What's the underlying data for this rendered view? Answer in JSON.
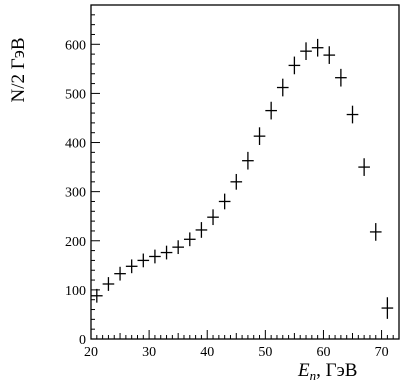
{
  "chart_data": {
    "type": "scatter",
    "title": "",
    "xlabel": "E_n, ГэВ",
    "xlabel_var": "E",
    "xlabel_sub": "n",
    "xlabel_unit": ", ГэВ",
    "ylabel": "N/2 ГэВ",
    "xlim": [
      20,
      73
    ],
    "ylim": [
      0,
      680
    ],
    "xticks": [
      20,
      30,
      40,
      50,
      60,
      70
    ],
    "yticks": [
      0,
      100,
      200,
      300,
      400,
      500,
      600
    ],
    "grid": false,
    "series": [
      {
        "x": [
          21,
          23,
          25,
          27,
          29,
          31,
          33,
          35,
          37,
          39,
          41,
          43,
          45,
          47,
          49,
          51,
          53,
          55,
          57,
          59,
          61,
          63,
          65,
          67,
          69,
          71
        ],
        "y": [
          88,
          112,
          133,
          148,
          160,
          168,
          176,
          187,
          203,
          222,
          248,
          280,
          320,
          363,
          413,
          465,
          512,
          557,
          586,
          593,
          578,
          532,
          457,
          350,
          218,
          63
        ],
        "y_err": [
          14,
          14,
          14,
          14,
          14,
          14,
          14,
          14,
          14,
          16,
          16,
          16,
          16,
          18,
          18,
          18,
          18,
          18,
          18,
          18,
          18,
          18,
          18,
          18,
          18,
          22
        ]
      }
    ]
  }
}
